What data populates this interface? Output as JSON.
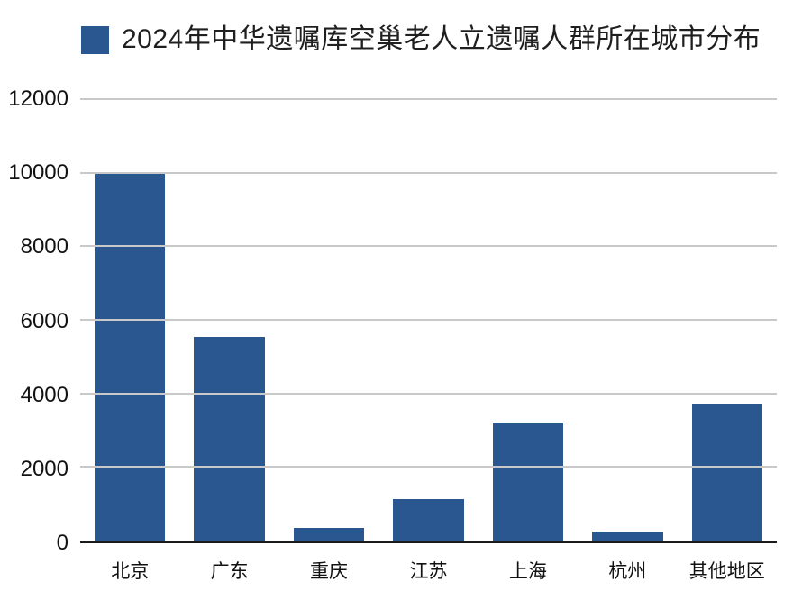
{
  "chart_data": {
    "type": "bar",
    "title": "2024年中华遗嘱库空巢老人立遗嘱人群所在城市分布",
    "legend": [
      "2024年中华遗嘱库空巢老人立遗嘱人群所在城市分布"
    ],
    "legend_position": "top-left",
    "categories": [
      "北京",
      "广东",
      "重庆",
      "江苏",
      "上海",
      "杭州",
      "其他地区"
    ],
    "values": [
      9980,
      5530,
      350,
      1130,
      3200,
      240,
      3720
    ],
    "xlabel": "",
    "ylabel": "",
    "ylim": [
      0,
      12000
    ],
    "yticks": [
      0,
      2000,
      4000,
      6000,
      8000,
      10000,
      12000
    ],
    "grid": true,
    "bar_color": "#2b5791",
    "grid_color": "#c9c9c9",
    "axis_color": "#1b1b1b",
    "text_color": "#1f1f1f",
    "background_color": "#ffffff"
  }
}
